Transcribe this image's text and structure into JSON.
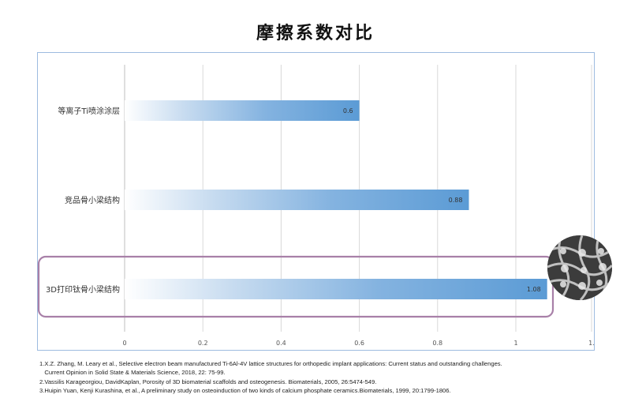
{
  "chart_data": {
    "type": "bar",
    "orientation": "horizontal",
    "title": "摩擦系数对比",
    "categories": [
      "等离子Ti喷涂涂层",
      "竞品骨小梁结构",
      "3D打印钛骨小梁结构"
    ],
    "values": [
      0.6,
      0.88,
      1.08
    ],
    "data_labels": [
      "0.6",
      "0.88",
      "1.08"
    ],
    "xlim": [
      0,
      1.2
    ],
    "x_ticks": [
      "0",
      "0.2",
      "0.4",
      "0.6",
      "0.8",
      "1",
      "1."
    ],
    "grid": true,
    "legend": "none",
    "highlighted_category": "3D打印钛骨小梁结构",
    "colors": {
      "bar": "#5b9bd5",
      "bar_fade": "#ffffff",
      "gridline": "#d9d9d9",
      "frame": "#9dbbe0",
      "highlight_box": "#a880a8"
    }
  },
  "footnotes": [
    "1.X.Z. Zhang, M. Leary et al., Selective electron beam manufactured Ti-6Al-4V lattice structures for orthopedic implant applications: Current status and outstanding challenges.",
    "   Current Opinion in Solid State & Materials Science, 2018, 22: 75-99.",
    "2.Vassilis Karageorgiou, DavidKaplan, Porosity of 3D biomaterial scaffolds and osteogenesis. Biomaterials, 2005, 26:5474-549.",
    "3.Huipin Yuan, Kenji Kurashina, et al., A preliminary study on osteoinduction of two kinds of calcium phosphate ceramics.Biomaterials, 1999, 20:1799-1806."
  ],
  "image": {
    "icon": "sem-trabecular-structure-image"
  }
}
